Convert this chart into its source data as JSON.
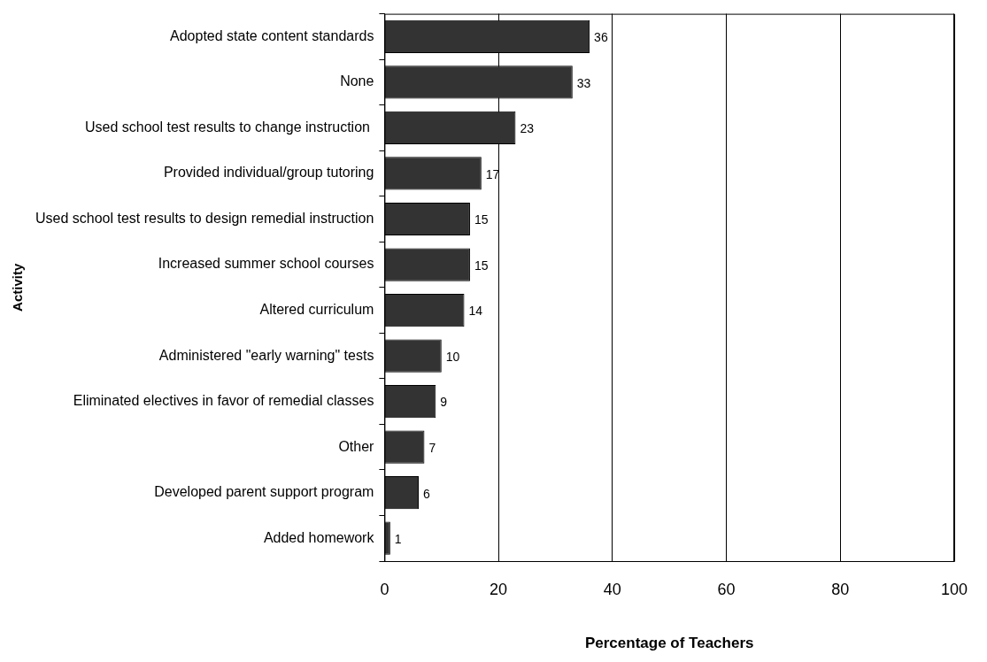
{
  "chart_data": {
    "type": "bar",
    "orientation": "horizontal",
    "xlabel": "Percentage of Teachers",
    "ylabel": "Activity",
    "categories": [
      "Adopted state content standards",
      "None",
      "Used school test results to change instruction ",
      "Provided individual/group tutoring",
      "Used school test results to design remedial instruction",
      "Increased summer school courses",
      "Altered curriculum",
      "Administered \"early warning\" tests",
      "Eliminated electives in favor of remedial classes",
      "Other",
      "Developed parent support program",
      "Added homework"
    ],
    "values": [
      36,
      33,
      23,
      17,
      15,
      15,
      14,
      10,
      9,
      7,
      6,
      1
    ],
    "color": "#333333",
    "xlim": [
      0,
      100
    ],
    "xticks": [
      0,
      20,
      40,
      60,
      80,
      100
    ],
    "grid": "x",
    "legend": false,
    "data_labels": true
  }
}
